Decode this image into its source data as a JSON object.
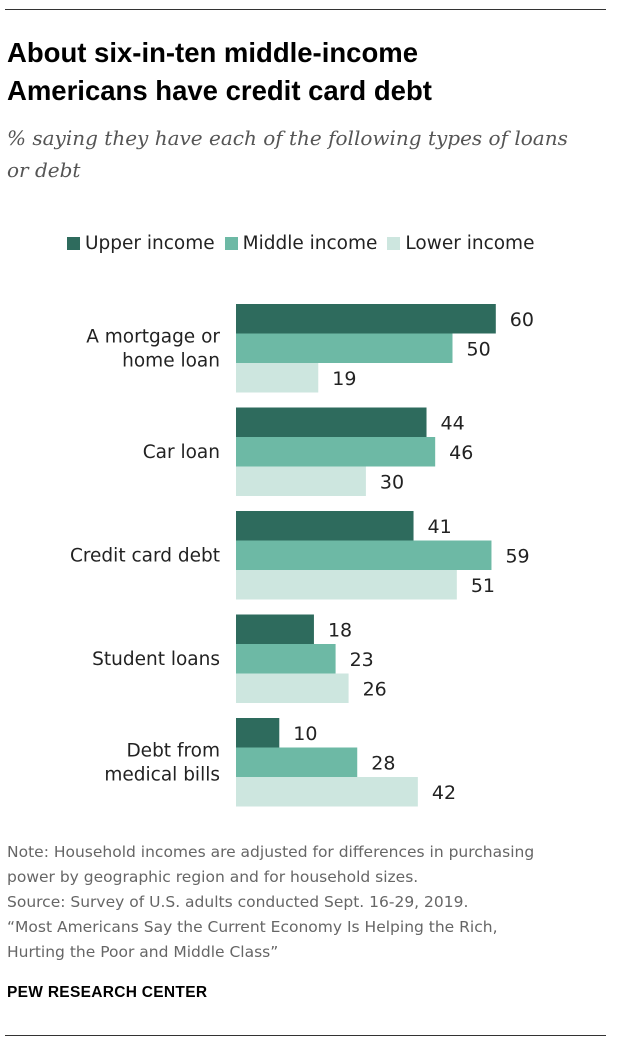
{
  "title_lines": [
    "About six-in-ten middle-income",
    "Americans have credit card debt"
  ],
  "subtitle_lines": [
    "% saying they have each of the following types of loans",
    "or debt"
  ],
  "notes": [
    "Note: Household incomes are adjusted for differences in purchasing",
    "power by geographic region and for household sizes.",
    "Source: Survey of U.S. adults conducted Sept. 16-29, 2019.",
    "“Most Americans Say the Current Economy Is Helping the Rich,",
    "Hurting the Poor and Middle Class”"
  ],
  "brand": "PEW RESEARCH CENTER",
  "colors": {
    "upper": "#2e6b5d",
    "middle": "#6db9a5",
    "lower": "#cde6df"
  },
  "chart_data": {
    "type": "bar",
    "orientation": "horizontal",
    "categories": [
      [
        "A mortgage or",
        "home loan"
      ],
      [
        "Car loan"
      ],
      [
        "Credit card debt"
      ],
      [
        "Student loans"
      ],
      [
        "Debt from",
        "medical bills"
      ]
    ],
    "series": [
      {
        "name": "Upper income",
        "values": [
          60,
          44,
          41,
          18,
          10
        ]
      },
      {
        "name": "Middle income",
        "values": [
          50,
          46,
          59,
          23,
          28
        ]
      },
      {
        "name": "Lower income",
        "values": [
          19,
          30,
          51,
          26,
          42
        ]
      }
    ],
    "xlim": [
      0,
      60
    ],
    "legend": "top",
    "grid": false,
    "data_labels": true
  }
}
